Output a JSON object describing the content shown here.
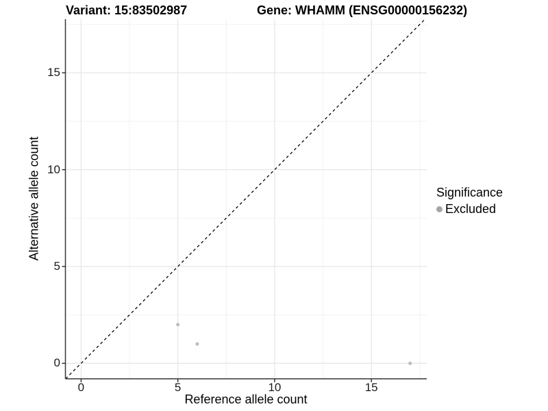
{
  "header": {
    "variant_title": "Variant: 15:83502987",
    "gene_title": "Gene: WHAMM (ENSG00000156232)"
  },
  "legend": {
    "title": "Significance",
    "items": [
      {
        "label": "Excluded",
        "color": "#a6a6a6"
      }
    ]
  },
  "chart_data": {
    "type": "scatter",
    "title": "Variant: 15:83502987 | Gene: WHAMM (ENSG00000156232)",
    "xlabel": "Reference allele count",
    "ylabel": "Alternative allele count",
    "xlim": [
      -0.81,
      17.86
    ],
    "ylim": [
      -0.8,
      17.77
    ],
    "x_major_ticks": [
      0,
      5,
      10,
      15
    ],
    "y_major_ticks": [
      0,
      5,
      10,
      15
    ],
    "x_minor_ticks": [
      2.5,
      7.5,
      12.5,
      17.5
    ],
    "y_minor_ticks": [
      2.5,
      7.5,
      12.5,
      17.5
    ],
    "grid": true,
    "legend_position": "right",
    "series": [
      {
        "name": "Excluded",
        "color": "#bfbfbf",
        "points": [
          [
            5,
            2
          ],
          [
            6,
            1
          ],
          [
            17,
            0
          ]
        ]
      }
    ],
    "reference_line": {
      "type": "identity",
      "slope": 1,
      "intercept": 0,
      "style": "dashed",
      "color": "#000000"
    }
  },
  "colors": {
    "background": "#ffffff",
    "grid_major": "#e5e5e5",
    "grid_minor": "#f2f2f2",
    "axis_line": "#333333",
    "point": "#bfbfbf",
    "text": "#000000"
  }
}
